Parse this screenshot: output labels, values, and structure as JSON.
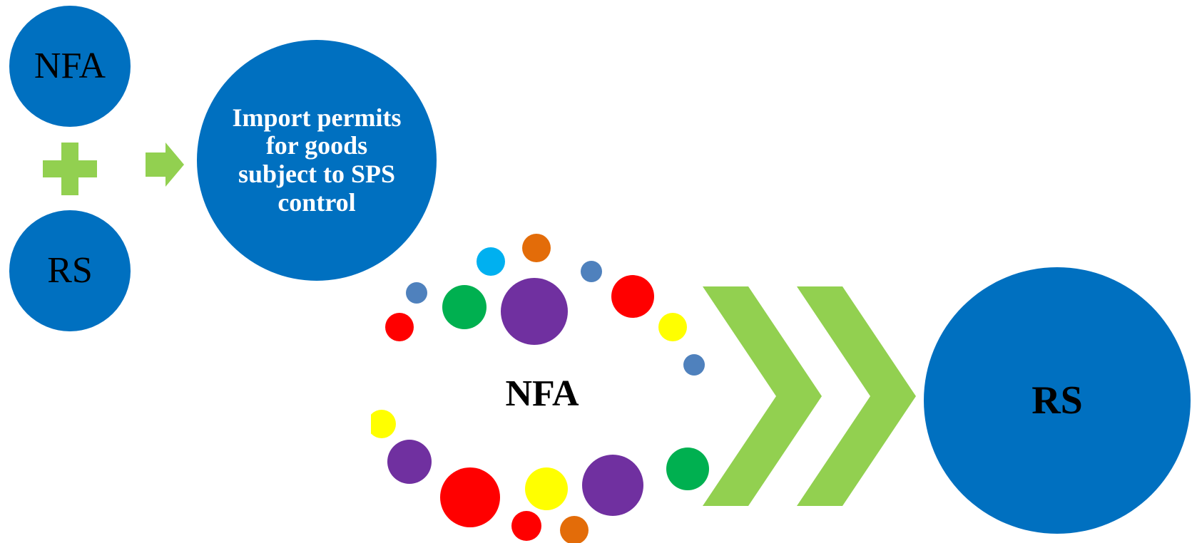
{
  "nodes": {
    "nfa_small": "NFA",
    "rs_small": "RS",
    "permits": "Import permits for goods subject to SPS control",
    "nfa_center": "NFA",
    "rs_large": "RS"
  },
  "colors": {
    "circle_fill": "#0070c0",
    "connector_green": "#92d050",
    "dot_palette": [
      "#4f81bd",
      "#ff0000",
      "#00b050",
      "#7030a0",
      "#00b0f0",
      "#e36c09",
      "#ffff00"
    ]
  },
  "icons": {
    "plus": "plus-icon",
    "arrow": "right-arrow-icon",
    "chevrons": "double-chevron-icon"
  }
}
